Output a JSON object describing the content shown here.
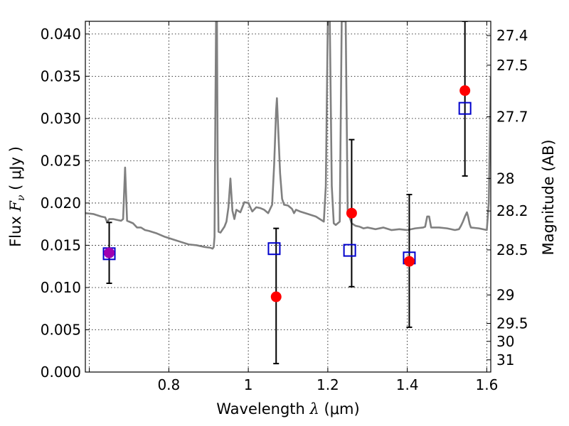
{
  "chart_data": {
    "type": "scatter",
    "xlabel": {
      "prefix": "Wavelength  ",
      "math": "λ",
      "suffix": " (μm)"
    },
    "ylabel": {
      "prefix": "Flux  ",
      "math": "F",
      "sub": "ν",
      "suffix": "  ( μJy )"
    },
    "ylabel_right": "Magnitude (AB)",
    "xlim": [
      0.59,
      1.61
    ],
    "ylim": [
      0.0,
      0.0415
    ],
    "grid": true,
    "xticks": [
      {
        "value": 0.6,
        "label": ""
      },
      {
        "value": 0.8,
        "label": "0.8"
      },
      {
        "value": 1.0,
        "label": "1"
      },
      {
        "value": 1.2,
        "label": "1.2"
      },
      {
        "value": 1.4,
        "label": "1.4"
      },
      {
        "value": 1.6,
        "label": "1.6"
      }
    ],
    "yticks": [
      {
        "value": 0.0,
        "label": "0.000"
      },
      {
        "value": 0.005,
        "label": "0.005"
      },
      {
        "value": 0.01,
        "label": "0.010"
      },
      {
        "value": 0.015,
        "label": "0.015"
      },
      {
        "value": 0.02,
        "label": "0.020"
      },
      {
        "value": 0.025,
        "label": "0.025"
      },
      {
        "value": 0.03,
        "label": "0.030"
      },
      {
        "value": 0.035,
        "label": "0.035"
      },
      {
        "value": 0.04,
        "label": "0.040"
      }
    ],
    "right_ticks": [
      {
        "label": "27.4"
      },
      {
        "label": "27.5"
      },
      {
        "label": "27.7"
      },
      {
        "label": "28"
      },
      {
        "label": "28.2"
      },
      {
        "label": "28.5"
      },
      {
        "label": "29"
      },
      {
        "label": "29.5"
      },
      {
        "label": "30"
      },
      {
        "label": "31"
      }
    ],
    "series": [
      {
        "kind": "line",
        "color": "#808080",
        "points": [
          [
            0.59,
            0.0188
          ],
          [
            0.61,
            0.0187
          ],
          [
            0.63,
            0.0184
          ],
          [
            0.64,
            0.0183
          ],
          [
            0.645,
            0.0177
          ],
          [
            0.65,
            0.0181
          ],
          [
            0.66,
            0.0181
          ],
          [
            0.67,
            0.018
          ],
          [
            0.68,
            0.0179
          ],
          [
            0.685,
            0.0181
          ],
          [
            0.69,
            0.0242
          ],
          [
            0.695,
            0.0179
          ],
          [
            0.7,
            0.0178
          ],
          [
            0.71,
            0.0176
          ],
          [
            0.72,
            0.0171
          ],
          [
            0.73,
            0.0171
          ],
          [
            0.74,
            0.0168
          ],
          [
            0.75,
            0.0167
          ],
          [
            0.77,
            0.0164
          ],
          [
            0.79,
            0.016
          ],
          [
            0.81,
            0.0157
          ],
          [
            0.83,
            0.0154
          ],
          [
            0.85,
            0.0151
          ],
          [
            0.87,
            0.015
          ],
          [
            0.89,
            0.0148
          ],
          [
            0.905,
            0.0147
          ],
          [
            0.91,
            0.0146
          ],
          [
            0.913,
            0.0148
          ],
          [
            0.915,
            0.016
          ],
          [
            0.917,
            0.03
          ],
          [
            0.919,
            0.042
          ],
          [
            0.921,
            0.042
          ],
          [
            0.923,
            0.024
          ],
          [
            0.925,
            0.0166
          ],
          [
            0.93,
            0.0165
          ],
          [
            0.94,
            0.0172
          ],
          [
            0.945,
            0.0178
          ],
          [
            0.95,
            0.0195
          ],
          [
            0.955,
            0.0229
          ],
          [
            0.96,
            0.0191
          ],
          [
            0.965,
            0.0181
          ],
          [
            0.97,
            0.0192
          ],
          [
            0.98,
            0.0189
          ],
          [
            0.99,
            0.0201
          ],
          [
            1.0,
            0.02
          ],
          [
            1.01,
            0.019
          ],
          [
            1.02,
            0.0195
          ],
          [
            1.03,
            0.0194
          ],
          [
            1.04,
            0.0192
          ],
          [
            1.05,
            0.0188
          ],
          [
            1.06,
            0.0198
          ],
          [
            1.065,
            0.0245
          ],
          [
            1.07,
            0.031
          ],
          [
            1.072,
            0.0324
          ],
          [
            1.075,
            0.029
          ],
          [
            1.08,
            0.0235
          ],
          [
            1.085,
            0.0205
          ],
          [
            1.09,
            0.0198
          ],
          [
            1.1,
            0.0197
          ],
          [
            1.11,
            0.0193
          ],
          [
            1.115,
            0.0188
          ],
          [
            1.12,
            0.0192
          ],
          [
            1.13,
            0.019
          ],
          [
            1.15,
            0.0187
          ],
          [
            1.17,
            0.0184
          ],
          [
            1.19,
            0.0178
          ],
          [
            1.195,
            0.022
          ],
          [
            1.2,
            0.0415
          ],
          [
            1.205,
            0.0415
          ],
          [
            1.21,
            0.022
          ],
          [
            1.215,
            0.0176
          ],
          [
            1.22,
            0.0174
          ],
          [
            1.23,
            0.0178
          ],
          [
            1.235,
            0.0415
          ],
          [
            1.24,
            0.0415
          ],
          [
            1.245,
            0.0415
          ],
          [
            1.25,
            0.019
          ],
          [
            1.26,
            0.0176
          ],
          [
            1.27,
            0.0173
          ],
          [
            1.28,
            0.0172
          ],
          [
            1.29,
            0.017
          ],
          [
            1.3,
            0.0171
          ],
          [
            1.32,
            0.0169
          ],
          [
            1.34,
            0.0171
          ],
          [
            1.36,
            0.0168
          ],
          [
            1.38,
            0.0169
          ],
          [
            1.4,
            0.0168
          ],
          [
            1.42,
            0.017
          ],
          [
            1.44,
            0.0171
          ],
          [
            1.445,
            0.0172
          ],
          [
            1.45,
            0.0184
          ],
          [
            1.455,
            0.0184
          ],
          [
            1.46,
            0.0171
          ],
          [
            1.48,
            0.0171
          ],
          [
            1.5,
            0.017
          ],
          [
            1.52,
            0.0168
          ],
          [
            1.53,
            0.0169
          ],
          [
            1.535,
            0.0173
          ],
          [
            1.54,
            0.0178
          ],
          [
            1.545,
            0.0184
          ],
          [
            1.55,
            0.0189
          ],
          [
            1.553,
            0.0184
          ],
          [
            1.557,
            0.0175
          ],
          [
            1.56,
            0.0171
          ],
          [
            1.58,
            0.017
          ],
          [
            1.6,
            0.0168
          ],
          [
            1.605,
            0.02
          ],
          [
            1.61,
            0.035
          ]
        ]
      },
      {
        "kind": "errorbar",
        "color": "#000000",
        "points": [
          {
            "x": 0.65,
            "y": 0.0141,
            "lo": 0.0105,
            "hi": 0.0177
          },
          {
            "x": 1.07,
            "y": 0.0089,
            "lo": 0.001,
            "hi": 0.017
          },
          {
            "x": 1.26,
            "y": 0.0188,
            "lo": 0.0101,
            "hi": 0.0275
          },
          {
            "x": 1.405,
            "y": 0.0131,
            "lo": 0.0053,
            "hi": 0.021
          },
          {
            "x": 1.545,
            "y": 0.0333,
            "lo": 0.0232,
            "hi": 0.0415
          }
        ]
      },
      {
        "kind": "squares",
        "color": "#0000cc",
        "points": [
          [
            0.65,
            0.014
          ],
          [
            1.065,
            0.0146
          ],
          [
            1.255,
            0.0144
          ],
          [
            1.405,
            0.0135
          ],
          [
            1.545,
            0.0312
          ]
        ]
      },
      {
        "kind": "circles",
        "color": "#ff0000",
        "points": [
          [
            0.65,
            0.0141
          ],
          [
            1.07,
            0.0089
          ],
          [
            1.26,
            0.0188
          ],
          [
            1.405,
            0.0131
          ],
          [
            1.545,
            0.0333
          ]
        ]
      }
    ],
    "overlap_color": "#a000b0"
  }
}
